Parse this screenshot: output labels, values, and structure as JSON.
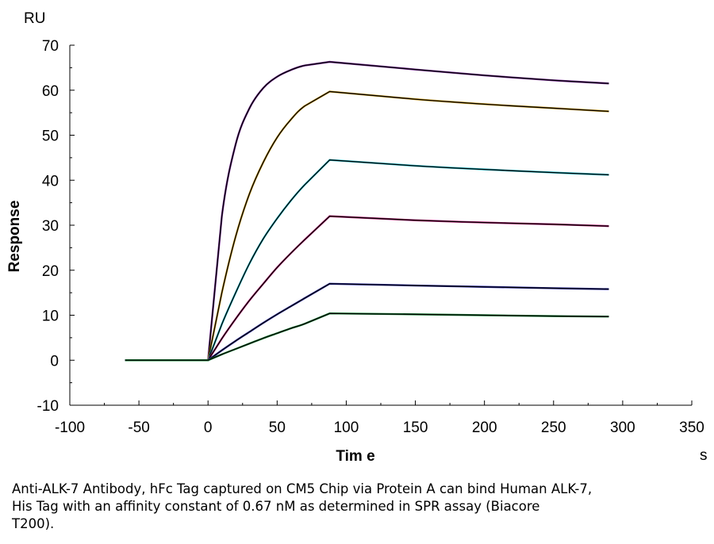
{
  "chart_data": {
    "type": "line",
    "title": "",
    "xlabel": "Tim e",
    "ylabel": "Response",
    "x_unit": "s",
    "y_unit": "RU",
    "xlim": [
      -100,
      350
    ],
    "ylim": [
      -10,
      70
    ],
    "x_ticks": [
      -100,
      -50,
      0,
      50,
      100,
      150,
      200,
      250,
      300,
      350
    ],
    "y_ticks": [
      -10,
      0,
      10,
      20,
      30,
      40,
      50,
      60,
      70
    ],
    "x_tick_labels": [
      "-100",
      "-50",
      "0",
      "50",
      "100",
      "150",
      "200",
      "250",
      "300",
      "350"
    ],
    "y_tick_labels": [
      "-10",
      "0",
      "10",
      "20",
      "30",
      "40",
      "50",
      "60",
      "70"
    ],
    "grid": false,
    "legend": "none",
    "series": [
      {
        "color": "#7a2a9a",
        "baseline_start": -60,
        "injection_start": 0,
        "injection_end": 88,
        "end": 290,
        "x": [
          -60,
          0,
          10,
          20,
          30,
          40,
          50,
          60,
          70,
          88,
          150,
          200,
          250,
          290
        ],
        "y": [
          0,
          0,
          32,
          48,
          56,
          60.5,
          63,
          64.5,
          65.5,
          66.3,
          64.6,
          63.3,
          62.2,
          61.5
        ]
      },
      {
        "color": "#d4a017",
        "baseline_start": -60,
        "injection_start": 0,
        "injection_end": 88,
        "end": 290,
        "x": [
          -60,
          0,
          10,
          20,
          30,
          40,
          50,
          60,
          70,
          88,
          150,
          200,
          250,
          290
        ],
        "y": [
          0,
          0,
          15,
          27.5,
          37,
          44,
          49.5,
          53.5,
          56.5,
          59.7,
          58,
          56.9,
          56,
          55.3
        ]
      },
      {
        "color": "#20c0d0",
        "baseline_start": -60,
        "injection_start": 0,
        "injection_end": 88,
        "end": 290,
        "x": [
          -60,
          0,
          10,
          20,
          30,
          40,
          50,
          60,
          70,
          88,
          150,
          200,
          250,
          290
        ],
        "y": [
          0,
          0,
          8,
          15,
          21.5,
          27,
          31.5,
          35.5,
          39,
          44.5,
          43.2,
          42.4,
          41.7,
          41.2
        ]
      },
      {
        "color": "#c0207a",
        "baseline_start": -60,
        "injection_start": 0,
        "injection_end": 88,
        "end": 290,
        "x": [
          -60,
          0,
          10,
          20,
          30,
          40,
          50,
          60,
          70,
          88,
          150,
          200,
          250,
          290
        ],
        "y": [
          0,
          0,
          4.8,
          9.2,
          13.3,
          17,
          20.6,
          23.8,
          26.8,
          32,
          31.1,
          30.6,
          30.2,
          29.8
        ]
      },
      {
        "color": "#2a2ab0",
        "baseline_start": -60,
        "injection_start": 0,
        "injection_end": 88,
        "end": 290,
        "x": [
          -60,
          0,
          10,
          20,
          30,
          40,
          50,
          60,
          70,
          88,
          150,
          200,
          250,
          290
        ],
        "y": [
          0,
          0,
          2.2,
          4.3,
          6.3,
          8.3,
          10.2,
          12,
          13.8,
          17,
          16.6,
          16.3,
          16,
          15.8
        ]
      },
      {
        "color": "#1a8a3a",
        "baseline_start": -60,
        "injection_start": 0,
        "injection_end": 88,
        "end": 290,
        "x": [
          -60,
          0,
          10,
          20,
          30,
          40,
          50,
          60,
          70,
          88,
          150,
          200,
          250,
          290
        ],
        "y": [
          0,
          0,
          1.3,
          2.5,
          3.7,
          4.9,
          6.0,
          7.1,
          8.1,
          10.4,
          10.2,
          10.0,
          9.8,
          9.7
        ]
      }
    ]
  },
  "caption": "Anti-ALK-7 Antibody, hFc Tag captured on CM5 Chip via Protein A can bind Human ALK-7,\nHis Tag with an affinity constant of 0.67 nM as determined in SPR assay (Biacore\nT200)."
}
